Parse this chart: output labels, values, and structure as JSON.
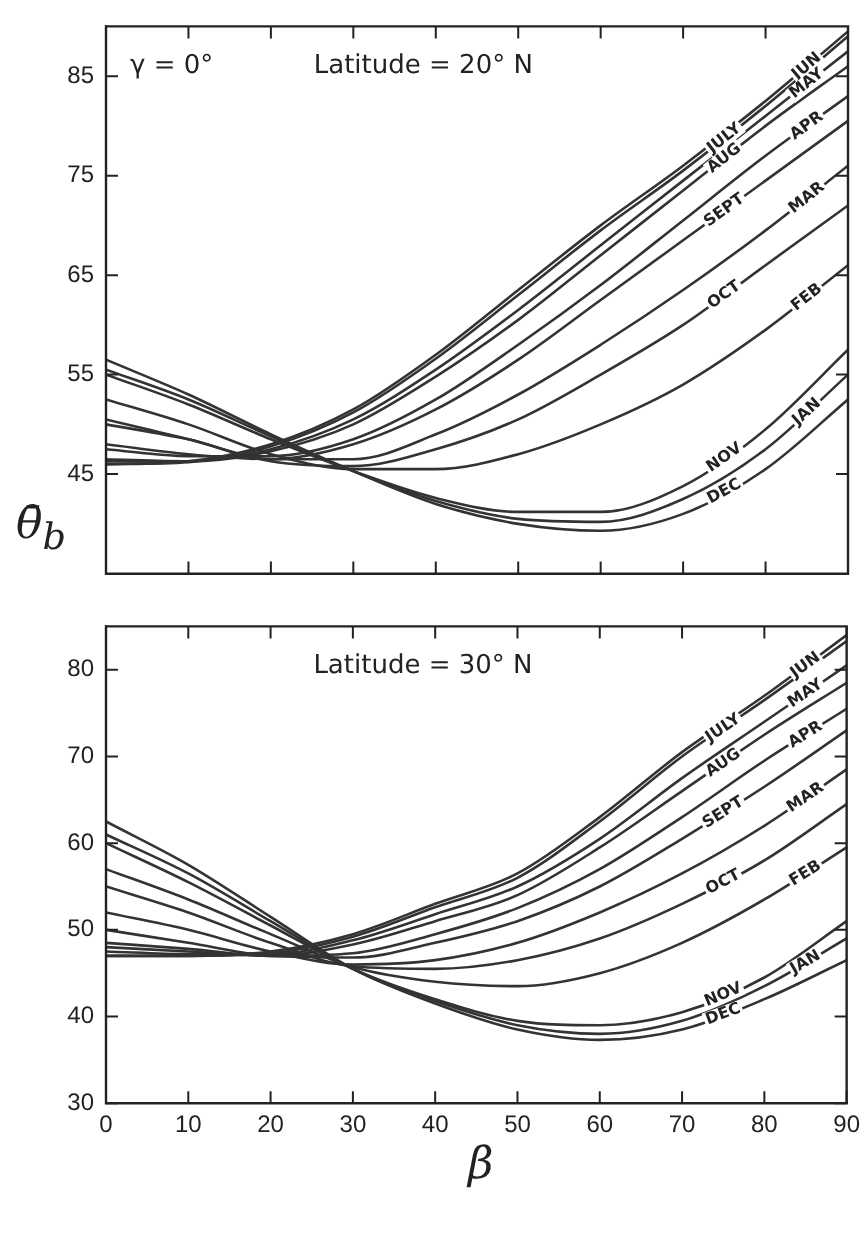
{
  "chart_data": [
    {
      "type": "line",
      "ylabel": "θ̄$_{b}$",
      "annotations": [
        "γ = 0°",
        "Latitude = 20° N"
      ],
      "x": [
        0,
        10,
        20,
        30,
        40,
        50,
        60,
        70,
        80,
        90
      ],
      "xlim": [
        0,
        90
      ],
      "xticks": [
        0,
        10,
        20,
        30,
        40,
        50,
        60,
        70,
        80,
        90
      ],
      "ylim": [
        35,
        90
      ],
      "yticks": [
        45,
        55,
        65,
        75,
        85
      ],
      "tick_labels": "y",
      "series": [
        {
          "name": "JUN",
          "color": "#333333",
          "values": [
            46,
            46.3,
            48,
            51.5,
            57,
            63.5,
            70,
            76,
            82.5,
            89.5
          ]
        },
        {
          "name": "JULY",
          "color": "#333333",
          "values": [
            46,
            46.2,
            47.8,
            51.2,
            56.6,
            63,
            69.5,
            75.5,
            82,
            89
          ]
        },
        {
          "name": "MAY",
          "color": "#333333",
          "values": [
            46.3,
            46.3,
            47.5,
            50.5,
            55.5,
            61.5,
            68,
            74.5,
            81,
            87.5
          ]
        },
        {
          "name": "AUG",
          "color": "#333333",
          "values": [
            46.5,
            46.3,
            47.3,
            50,
            54.8,
            60.5,
            67,
            73.5,
            80,
            86
          ]
        },
        {
          "name": "APR",
          "color": "#333333",
          "values": [
            47.5,
            46.8,
            46.8,
            48.5,
            52.5,
            58,
            64,
            70.5,
            77,
            83
          ]
        },
        {
          "name": "SEPT",
          "color": "#333333",
          "values": [
            48,
            47,
            46.5,
            48,
            51.5,
            56.5,
            62.5,
            68.5,
            74.5,
            80.5
          ]
        },
        {
          "name": "MAR",
          "color": "#333333",
          "values": [
            50,
            48.5,
            46.5,
            46.5,
            49,
            53,
            58,
            63.5,
            69.5,
            76
          ]
        },
        {
          "name": "OCT",
          "color": "#333333",
          "values": [
            50.5,
            48.5,
            46.3,
            45.8,
            47.5,
            50.5,
            55,
            60,
            66,
            72
          ]
        },
        {
          "name": "FEB",
          "color": "#333333",
          "values": [
            52.5,
            50,
            47,
            45.5,
            45.5,
            47,
            50,
            54,
            59.5,
            66
          ]
        },
        {
          "name": "NOV",
          "color": "#333333",
          "values": [
            55,
            52,
            48.5,
            45.3,
            42.6,
            41.2,
            41.2,
            43.8,
            49.5,
            57.5
          ]
        },
        {
          "name": "JAN",
          "color": "#333333",
          "values": [
            55.5,
            52.5,
            48.8,
            45.3,
            42.3,
            40.5,
            40.2,
            42.5,
            47.5,
            55
          ]
        },
        {
          "name": "DEC",
          "color": "#333333",
          "values": [
            56.5,
            53,
            49,
            45.3,
            42,
            40,
            39.3,
            41,
            45.5,
            52.5
          ]
        }
      ]
    },
    {
      "type": "line",
      "xlabel": "β",
      "annotations": [
        "Latitude = 30° N"
      ],
      "x": [
        0,
        10,
        20,
        30,
        40,
        50,
        60,
        70,
        80,
        90
      ],
      "xlim": [
        0,
        90
      ],
      "xticks": [
        0,
        10,
        20,
        30,
        40,
        50,
        60,
        70,
        80,
        90
      ],
      "ylim": [
        30,
        85
      ],
      "yticks": [
        30,
        40,
        50,
        60,
        70,
        80
      ],
      "series": [
        {
          "name": "JUN",
          "color": "#333333",
          "values": [
            47,
            47,
            47.5,
            49.5,
            53,
            56.5,
            63,
            70.5,
            77,
            84
          ]
        },
        {
          "name": "JULY",
          "color": "#333333",
          "values": [
            47,
            47,
            47.3,
            49.2,
            52.6,
            56,
            62.5,
            70,
            76.5,
            83.3
          ]
        },
        {
          "name": "MAY",
          "color": "#333333",
          "values": [
            47.5,
            47.2,
            47.2,
            48.8,
            51.8,
            55,
            60.5,
            67.5,
            74,
            80.5
          ]
        },
        {
          "name": "AUG",
          "color": "#333333",
          "values": [
            48,
            47.5,
            47,
            48.3,
            51,
            54,
            59.5,
            66,
            72.5,
            78.5
          ]
        },
        {
          "name": "APR",
          "color": "#333333",
          "values": [
            48.5,
            47.8,
            47,
            47.3,
            49.5,
            52.5,
            57,
            63,
            69.5,
            75.5
          ]
        },
        {
          "name": "SEPT",
          "color": "#333333",
          "values": [
            50,
            48.5,
            47,
            46.8,
            48.5,
            51,
            55,
            60.5,
            66.5,
            73
          ]
        },
        {
          "name": "MAR",
          "color": "#333333",
          "values": [
            52,
            50,
            47.5,
            46,
            46.5,
            48.5,
            52,
            56.5,
            62,
            68.5
          ]
        },
        {
          "name": "OCT",
          "color": "#333333",
          "values": [
            55,
            52,
            48.5,
            45.8,
            45.5,
            46.5,
            49,
            53,
            58,
            64.5
          ]
        },
        {
          "name": "FEB",
          "color": "#333333",
          "values": [
            57,
            53.5,
            49.5,
            45.7,
            44,
            43.5,
            45,
            48.5,
            53.5,
            59.5
          ]
        },
        {
          "name": "NOV",
          "color": "#333333",
          "values": [
            60,
            55.5,
            50.5,
            45.5,
            42,
            39.5,
            39,
            40.5,
            44.5,
            51
          ]
        },
        {
          "name": "JAN",
          "color": "#333333",
          "values": [
            61,
            56.5,
            51,
            45.5,
            41.8,
            39,
            38,
            39.5,
            43.5,
            49
          ]
        },
        {
          "name": "DEC",
          "color": "#333333",
          "values": [
            62.5,
            57.5,
            51.5,
            45.5,
            41.5,
            38.5,
            37.3,
            38.5,
            42,
            46.5
          ]
        }
      ]
    }
  ]
}
